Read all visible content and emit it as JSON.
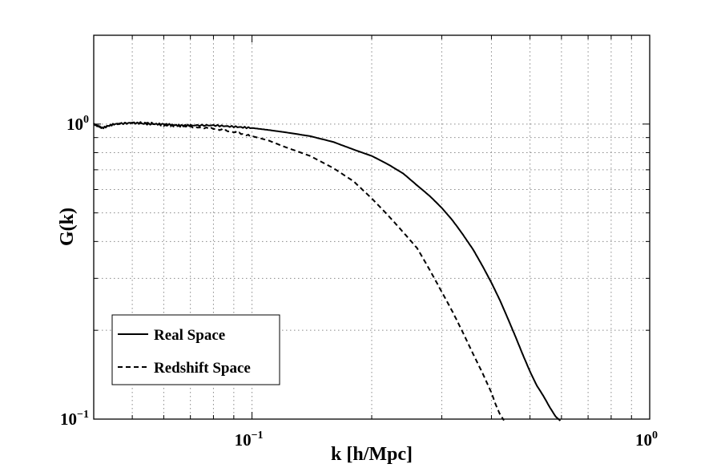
{
  "chart_data": {
    "type": "line",
    "xscale": "log",
    "yscale": "log",
    "xlim": [
      0.04,
      1.0
    ],
    "ylim": [
      0.1,
      2.0
    ],
    "xlabel": "k [h/Mpc]",
    "ylabel": "G(k)",
    "grid": true,
    "legend_position": "lower-left",
    "xticks": [
      {
        "value": 0.1,
        "base": "10",
        "exp": "−1"
      },
      {
        "value": 1.0,
        "base": "10",
        "exp": "0"
      }
    ],
    "yticks": [
      {
        "value": 0.1,
        "base": "10",
        "exp": "−1"
      },
      {
        "value": 1.0,
        "base": "10",
        "exp": "0"
      }
    ],
    "series": [
      {
        "name": "Real Space",
        "style": "solid",
        "color": "#000000",
        "x": [
          0.04,
          0.042,
          0.045,
          0.05,
          0.055,
          0.06,
          0.065,
          0.07,
          0.08,
          0.09,
          0.1,
          0.11,
          0.12,
          0.14,
          0.16,
          0.18,
          0.2,
          0.22,
          0.24,
          0.26,
          0.28,
          0.3,
          0.32,
          0.34,
          0.36,
          0.38,
          0.4,
          0.42,
          0.44,
          0.46,
          0.48,
          0.5,
          0.52,
          0.54,
          0.56,
          0.58,
          0.6
        ],
        "y": [
          1.0,
          0.97,
          1.0,
          1.01,
          1.0,
          1.0,
          0.99,
          0.99,
          0.99,
          0.98,
          0.97,
          0.955,
          0.94,
          0.91,
          0.87,
          0.82,
          0.78,
          0.73,
          0.68,
          0.62,
          0.57,
          0.52,
          0.47,
          0.42,
          0.375,
          0.33,
          0.29,
          0.253,
          0.219,
          0.19,
          0.165,
          0.145,
          0.13,
          0.12,
          0.11,
          0.102,
          0.098
        ]
      },
      {
        "name": "Redshift Space",
        "style": "dashed",
        "color": "#000000",
        "x": [
          0.04,
          0.042,
          0.045,
          0.05,
          0.055,
          0.06,
          0.065,
          0.07,
          0.08,
          0.09,
          0.1,
          0.11,
          0.12,
          0.14,
          0.16,
          0.18,
          0.2,
          0.22,
          0.24,
          0.26,
          0.28,
          0.3,
          0.32,
          0.34,
          0.36,
          0.38,
          0.4,
          0.41,
          0.42,
          0.43
        ],
        "y": [
          1.0,
          0.97,
          1.0,
          1.01,
          1.01,
          0.99,
          0.985,
          0.98,
          0.965,
          0.94,
          0.91,
          0.88,
          0.84,
          0.78,
          0.71,
          0.64,
          0.56,
          0.49,
          0.43,
          0.38,
          0.32,
          0.27,
          0.23,
          0.195,
          0.166,
          0.143,
          0.123,
          0.112,
          0.104,
          0.099
        ]
      }
    ]
  }
}
